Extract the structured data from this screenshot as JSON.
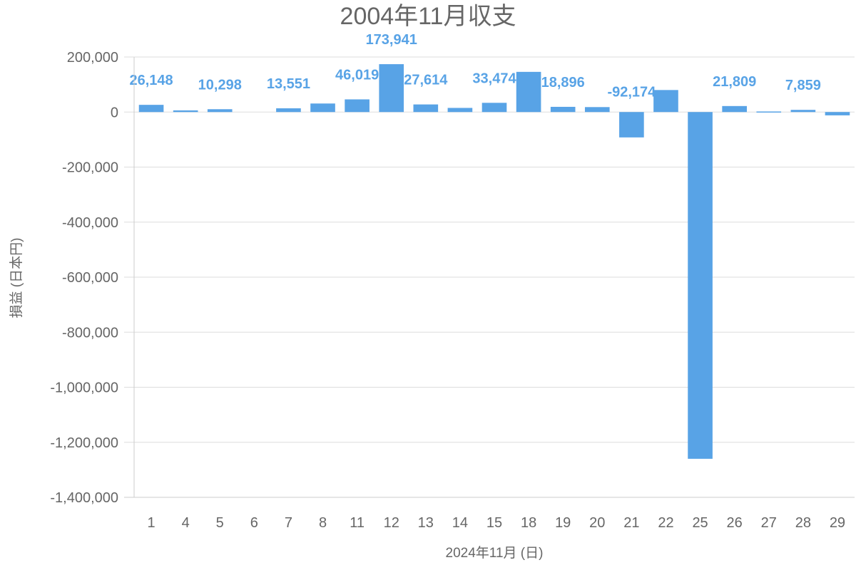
{
  "chart_data": {
    "type": "bar",
    "title": "2004年11月収支",
    "xlabel": "2024年11月 (日)",
    "ylabel": "損益 (日本円)",
    "ylim": [
      -1400000,
      200000
    ],
    "y_ticks": [
      200000,
      0,
      -200000,
      -400000,
      -600000,
      -800000,
      -1000000,
      -1200000,
      -1400000
    ],
    "y_tick_labels": [
      "200,000",
      "0",
      "-200,000",
      "-400,000",
      "-600,000",
      "-800,000",
      "-1,000,000",
      "-1,200,000",
      "-1,400,000"
    ],
    "grid": true,
    "legend": "none",
    "bar_color": "#58a3e6",
    "categories": [
      "1",
      "4",
      "5",
      "6",
      "7",
      "8",
      "11",
      "12",
      "13",
      "14",
      "15",
      "18",
      "19",
      "20",
      "21",
      "22",
      "25",
      "26",
      "27",
      "28",
      "29"
    ],
    "values": [
      26148,
      6000,
      10298,
      0,
      13551,
      31000,
      46019,
      173941,
      27614,
      15000,
      33474,
      146000,
      18896,
      18000,
      -92174,
      80000,
      -1260000,
      21809,
      2000,
      7859,
      -12000
    ],
    "data_labels": [
      "26,148",
      "",
      "10,298",
      "",
      "13,551",
      "",
      "46,019",
      "173,941",
      "27,614",
      "",
      "33,474",
      "",
      "18,896",
      "",
      "-92,174",
      "",
      "",
      "21,809",
      "",
      "7,859",
      ""
    ]
  }
}
